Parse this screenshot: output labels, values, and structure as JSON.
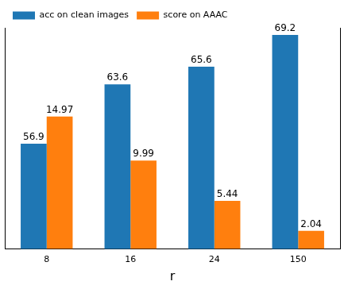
{
  "chart_data": {
    "type": "bar",
    "x_label": "r",
    "categories": [
      "8",
      "16",
      "24",
      "150"
    ],
    "series": [
      {
        "name": "acc on clean images",
        "color": "#1f77b4",
        "values": [
          56.9,
          63.6,
          65.6,
          69.2
        ],
        "axis": "y"
      },
      {
        "name": "score on AAAC",
        "color": "#ff7f0e",
        "values": [
          14.97,
          9.99,
          5.44,
          2.04
        ],
        "axis": "y2"
      }
    ],
    "ylim": [
      45,
      70
    ],
    "y2lim": [
      0,
      25
    ],
    "grid": false,
    "legend": "upper left",
    "data_labels": true,
    "tick_labels": "x"
  }
}
